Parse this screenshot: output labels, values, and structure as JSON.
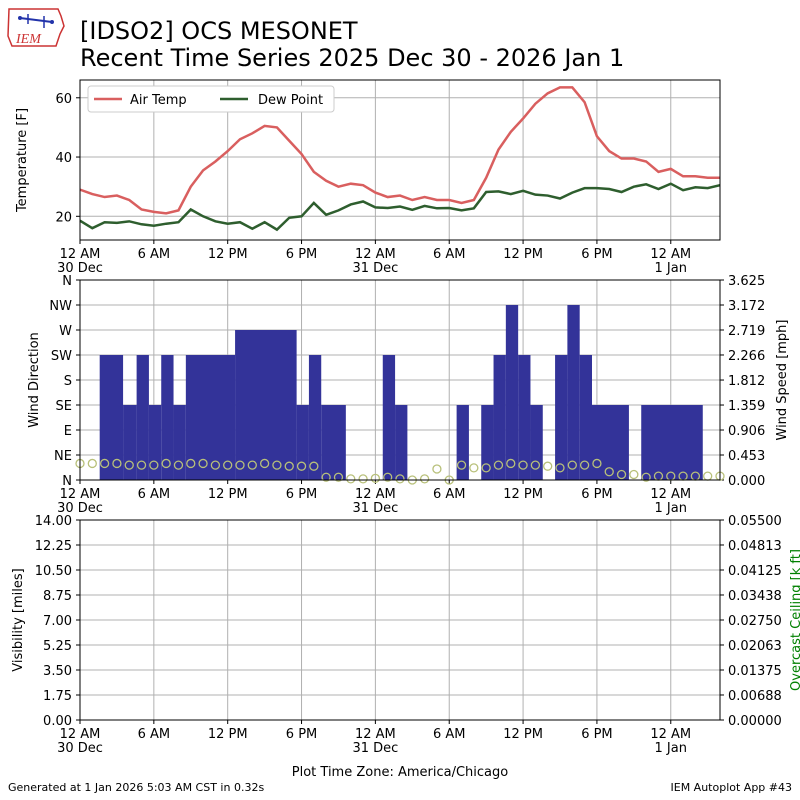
{
  "header": {
    "title": "[IDSO2] OCS MESONET",
    "subtitle": "Recent Time Series 2025 Dec 30 - 2026 Jan 1",
    "logo_text": "IEM"
  },
  "footer": {
    "generated": "Generated at 1 Jan 2026 5:03 AM CST in 0.32s",
    "app": "IEM Autoplot App #43"
  },
  "colors": {
    "air_temp": "#d95f5f",
    "dew_point": "#2e5e2e",
    "wind_bars": "#333399",
    "wind_speed_markers": "#b8c07a",
    "ceiling_axis": "#008000",
    "grid": "#b0b0b0"
  },
  "chart_data": [
    {
      "type": "line",
      "ylabel": "Temperature [F]",
      "ylim": [
        12,
        66
      ],
      "yticks": [
        20,
        40,
        60
      ],
      "xlim": [
        0,
        52
      ],
      "xticks": [
        0,
        6,
        12,
        18,
        24,
        30,
        36,
        42,
        48
      ],
      "xtick_labels": [
        "12 AM\n30 Dec",
        "6 AM",
        "12 PM",
        "6 PM",
        "12 AM\n31 Dec",
        "6 AM",
        "12 PM",
        "6 PM",
        "12 AM\n1 Jan"
      ],
      "grid": true,
      "legend": "top-left",
      "series": [
        {
          "name": "Air Temp",
          "x": [
            0,
            1,
            2,
            3,
            4,
            5,
            6,
            7,
            8,
            9,
            10,
            11,
            12,
            13,
            14,
            15,
            16,
            17,
            18,
            19,
            20,
            21,
            22,
            23,
            24,
            25,
            26,
            27,
            28,
            29,
            30,
            31,
            32,
            33,
            34,
            35,
            36,
            37,
            38,
            39,
            40,
            41,
            42,
            43,
            44,
            45,
            46,
            47,
            48,
            49,
            50,
            51,
            52
          ],
          "values": [
            29,
            27.5,
            26.5,
            27,
            25.5,
            22.3,
            21.5,
            21,
            22,
            30,
            35.5,
            38.5,
            42,
            46,
            48,
            50.5,
            50,
            45.5,
            41,
            35,
            32,
            30,
            31,
            30.5,
            28,
            26.5,
            27,
            25.5,
            26.5,
            25.5,
            25.5,
            24.5,
            25.5,
            33,
            42.5,
            48.5,
            53,
            58,
            61.5,
            63.5,
            63.5,
            58.5,
            47,
            42,
            39.5,
            39.5,
            38.5,
            35,
            36,
            33.5,
            33.5,
            33,
            33
          ]
        },
        {
          "name": "Dew Point",
          "x": [
            0,
            1,
            2,
            3,
            4,
            5,
            6,
            7,
            8,
            9,
            10,
            11,
            12,
            13,
            14,
            15,
            16,
            17,
            18,
            19,
            20,
            21,
            22,
            23,
            24,
            25,
            26,
            27,
            28,
            29,
            30,
            31,
            32,
            33,
            34,
            35,
            36,
            37,
            38,
            39,
            40,
            41,
            42,
            43,
            44,
            45,
            46,
            47,
            48,
            49,
            50,
            51,
            52
          ],
          "values": [
            18.5,
            16,
            18,
            17.8,
            18.3,
            17.3,
            16.8,
            17.5,
            18,
            22.3,
            20,
            18.3,
            17.5,
            18,
            15.8,
            18,
            15.5,
            19.5,
            20,
            24.5,
            20.5,
            22,
            24,
            25,
            23,
            22.8,
            23.3,
            22.2,
            23.5,
            22.7,
            22.8,
            22,
            22.7,
            28.2,
            28.4,
            27.5,
            28.6,
            27.3,
            27,
            26,
            28,
            29.5,
            29.5,
            29.2,
            28.2,
            30,
            30.8,
            29.2,
            31,
            28.8,
            29.8,
            29.5,
            30.5
          ]
        }
      ]
    },
    {
      "type": "bar",
      "ylabel": "Wind Direction",
      "ylabel_right": "Wind Speed [mph]",
      "y_categories": [
        "N",
        "NE",
        "E",
        "SE",
        "S",
        "SW",
        "W",
        "NW",
        "N"
      ],
      "ylim": [
        0,
        360
      ],
      "ylim_right": [
        0,
        3.625
      ],
      "yticks_right": [
        0.0,
        0.453,
        0.906,
        1.359,
        1.812,
        2.266,
        2.719,
        3.172,
        3.625
      ],
      "xlim": [
        0,
        52
      ],
      "grid": true,
      "series": [
        {
          "name": "",
          "kind": "bar",
          "bars": [
            {
              "x0": 1.6,
              "x1": 3.5,
              "dir": 225
            },
            {
              "x0": 3.5,
              "x1": 4.6,
              "dir": 135
            },
            {
              "x0": 4.6,
              "x1": 5.6,
              "dir": 225
            },
            {
              "x0": 5.6,
              "x1": 6.6,
              "dir": 135
            },
            {
              "x0": 6.6,
              "x1": 7.6,
              "dir": 225
            },
            {
              "x0": 7.6,
              "x1": 8.6,
              "dir": 135
            },
            {
              "x0": 8.6,
              "x1": 12.6,
              "dir": 225
            },
            {
              "x0": 12.6,
              "x1": 17.6,
              "dir": 270
            },
            {
              "x0": 17.6,
              "x1": 18.6,
              "dir": 135
            },
            {
              "x0": 18.6,
              "x1": 19.6,
              "dir": 225
            },
            {
              "x0": 19.6,
              "x1": 21.6,
              "dir": 135
            },
            {
              "x0": 24.6,
              "x1": 25.6,
              "dir": 225
            },
            {
              "x0": 25.6,
              "x1": 26.6,
              "dir": 135
            },
            {
              "x0": 30.6,
              "x1": 31.6,
              "dir": 135
            },
            {
              "x0": 32.6,
              "x1": 33.6,
              "dir": 135
            },
            {
              "x0": 33.6,
              "x1": 34.6,
              "dir": 225
            },
            {
              "x0": 34.6,
              "x1": 35.6,
              "dir": 315
            },
            {
              "x0": 35.6,
              "x1": 36.6,
              "dir": 225
            },
            {
              "x0": 36.6,
              "x1": 37.6,
              "dir": 135
            },
            {
              "x0": 38.6,
              "x1": 39.6,
              "dir": 225
            },
            {
              "x0": 39.6,
              "x1": 40.6,
              "dir": 315
            },
            {
              "x0": 40.6,
              "x1": 41.6,
              "dir": 225
            },
            {
              "x0": 41.6,
              "x1": 44.6,
              "dir": 135
            },
            {
              "x0": 45.6,
              "x1": 50.6,
              "dir": 135
            }
          ]
        },
        {
          "name": "",
          "kind": "scatter",
          "x": [
            0,
            1,
            2,
            3,
            4,
            5,
            6,
            7,
            8,
            9,
            10,
            11,
            12,
            13,
            14,
            15,
            16,
            17,
            18,
            19,
            20,
            21,
            22,
            23,
            24,
            25,
            26,
            27,
            28,
            29,
            30,
            31,
            32,
            33,
            34,
            35,
            36,
            37,
            38,
            39,
            40,
            41,
            42,
            43,
            44,
            45,
            46,
            47,
            48,
            49,
            50,
            51,
            52
          ],
          "values": [
            0.3,
            0.3,
            0.3,
            0.3,
            0.27,
            0.27,
            0.27,
            0.3,
            0.27,
            0.3,
            0.3,
            0.27,
            0.27,
            0.27,
            0.27,
            0.3,
            0.27,
            0.25,
            0.25,
            0.25,
            0.05,
            0.05,
            0.02,
            0.02,
            0.03,
            0.05,
            0.02,
            0.0,
            0.02,
            0.2,
            0.0,
            0.27,
            0.22,
            0.22,
            0.27,
            0.3,
            0.27,
            0.27,
            0.25,
            0.22,
            0.27,
            0.27,
            0.3,
            0.15,
            0.1,
            0.1,
            0.05,
            0.07,
            0.07,
            0.07,
            0.07,
            0.07,
            0.07
          ]
        }
      ]
    },
    {
      "type": "line",
      "ylabel": "Visibility [miles]",
      "ylabel_right": "Overcast Ceiling [k ft]",
      "ylim": [
        0,
        14
      ],
      "yticks": [
        0.0,
        1.75,
        3.5,
        5.25,
        7.0,
        8.75,
        10.5,
        12.25,
        14.0
      ],
      "ylim_right": [
        0,
        0.055
      ],
      "yticks_right": [
        "0.00000",
        "0.00688",
        "0.01375",
        "0.02063",
        "0.02750",
        "0.03438",
        "0.04125",
        "0.04813",
        "0.05500"
      ],
      "xlim": [
        0,
        52
      ],
      "xlabel": "Plot Time Zone: America/Chicago",
      "grid": true,
      "series": []
    }
  ]
}
